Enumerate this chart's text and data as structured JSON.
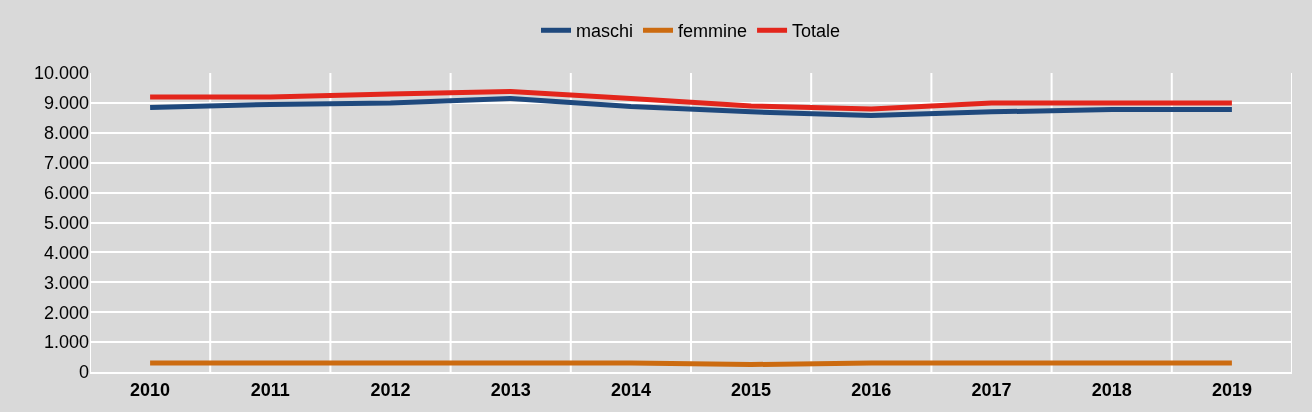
{
  "chart_data": {
    "type": "line",
    "categories": [
      "2010",
      "2011",
      "2012",
      "2013",
      "2014",
      "2015",
      "2016",
      "2017",
      "2018",
      "2019"
    ],
    "series": [
      {
        "name": "maschi",
        "color": "#1f497d",
        "values": [
          8850,
          8950,
          9000,
          9150,
          8880,
          8700,
          8580,
          8700,
          8780,
          8780
        ]
      },
      {
        "name": "femmine",
        "color": "#cc6b10",
        "values": [
          300,
          300,
          300,
          300,
          300,
          250,
          300,
          300,
          300,
          300
        ]
      },
      {
        "name": "Totale",
        "color": "#e3261c",
        "values": [
          9200,
          9200,
          9300,
          9380,
          9150,
          8900,
          8800,
          9000,
          9000,
          9000
        ]
      }
    ],
    "ylim": [
      0,
      10000
    ],
    "yticks": [
      {
        "value": 0,
        "label": "0"
      },
      {
        "value": 1000,
        "label": "1.000"
      },
      {
        "value": 2000,
        "label": "2.000"
      },
      {
        "value": 3000,
        "label": "3.000"
      },
      {
        "value": 4000,
        "label": "4.000"
      },
      {
        "value": 5000,
        "label": "5.000"
      },
      {
        "value": 6000,
        "label": "6.000"
      },
      {
        "value": 7000,
        "label": "7.000"
      },
      {
        "value": 8000,
        "label": "8.000"
      },
      {
        "value": 9000,
        "label": "9.000"
      },
      {
        "value": 10000,
        "label": "10.000"
      }
    ],
    "grid": true,
    "legend": "top",
    "marker": "none",
    "line_style": "solid"
  }
}
